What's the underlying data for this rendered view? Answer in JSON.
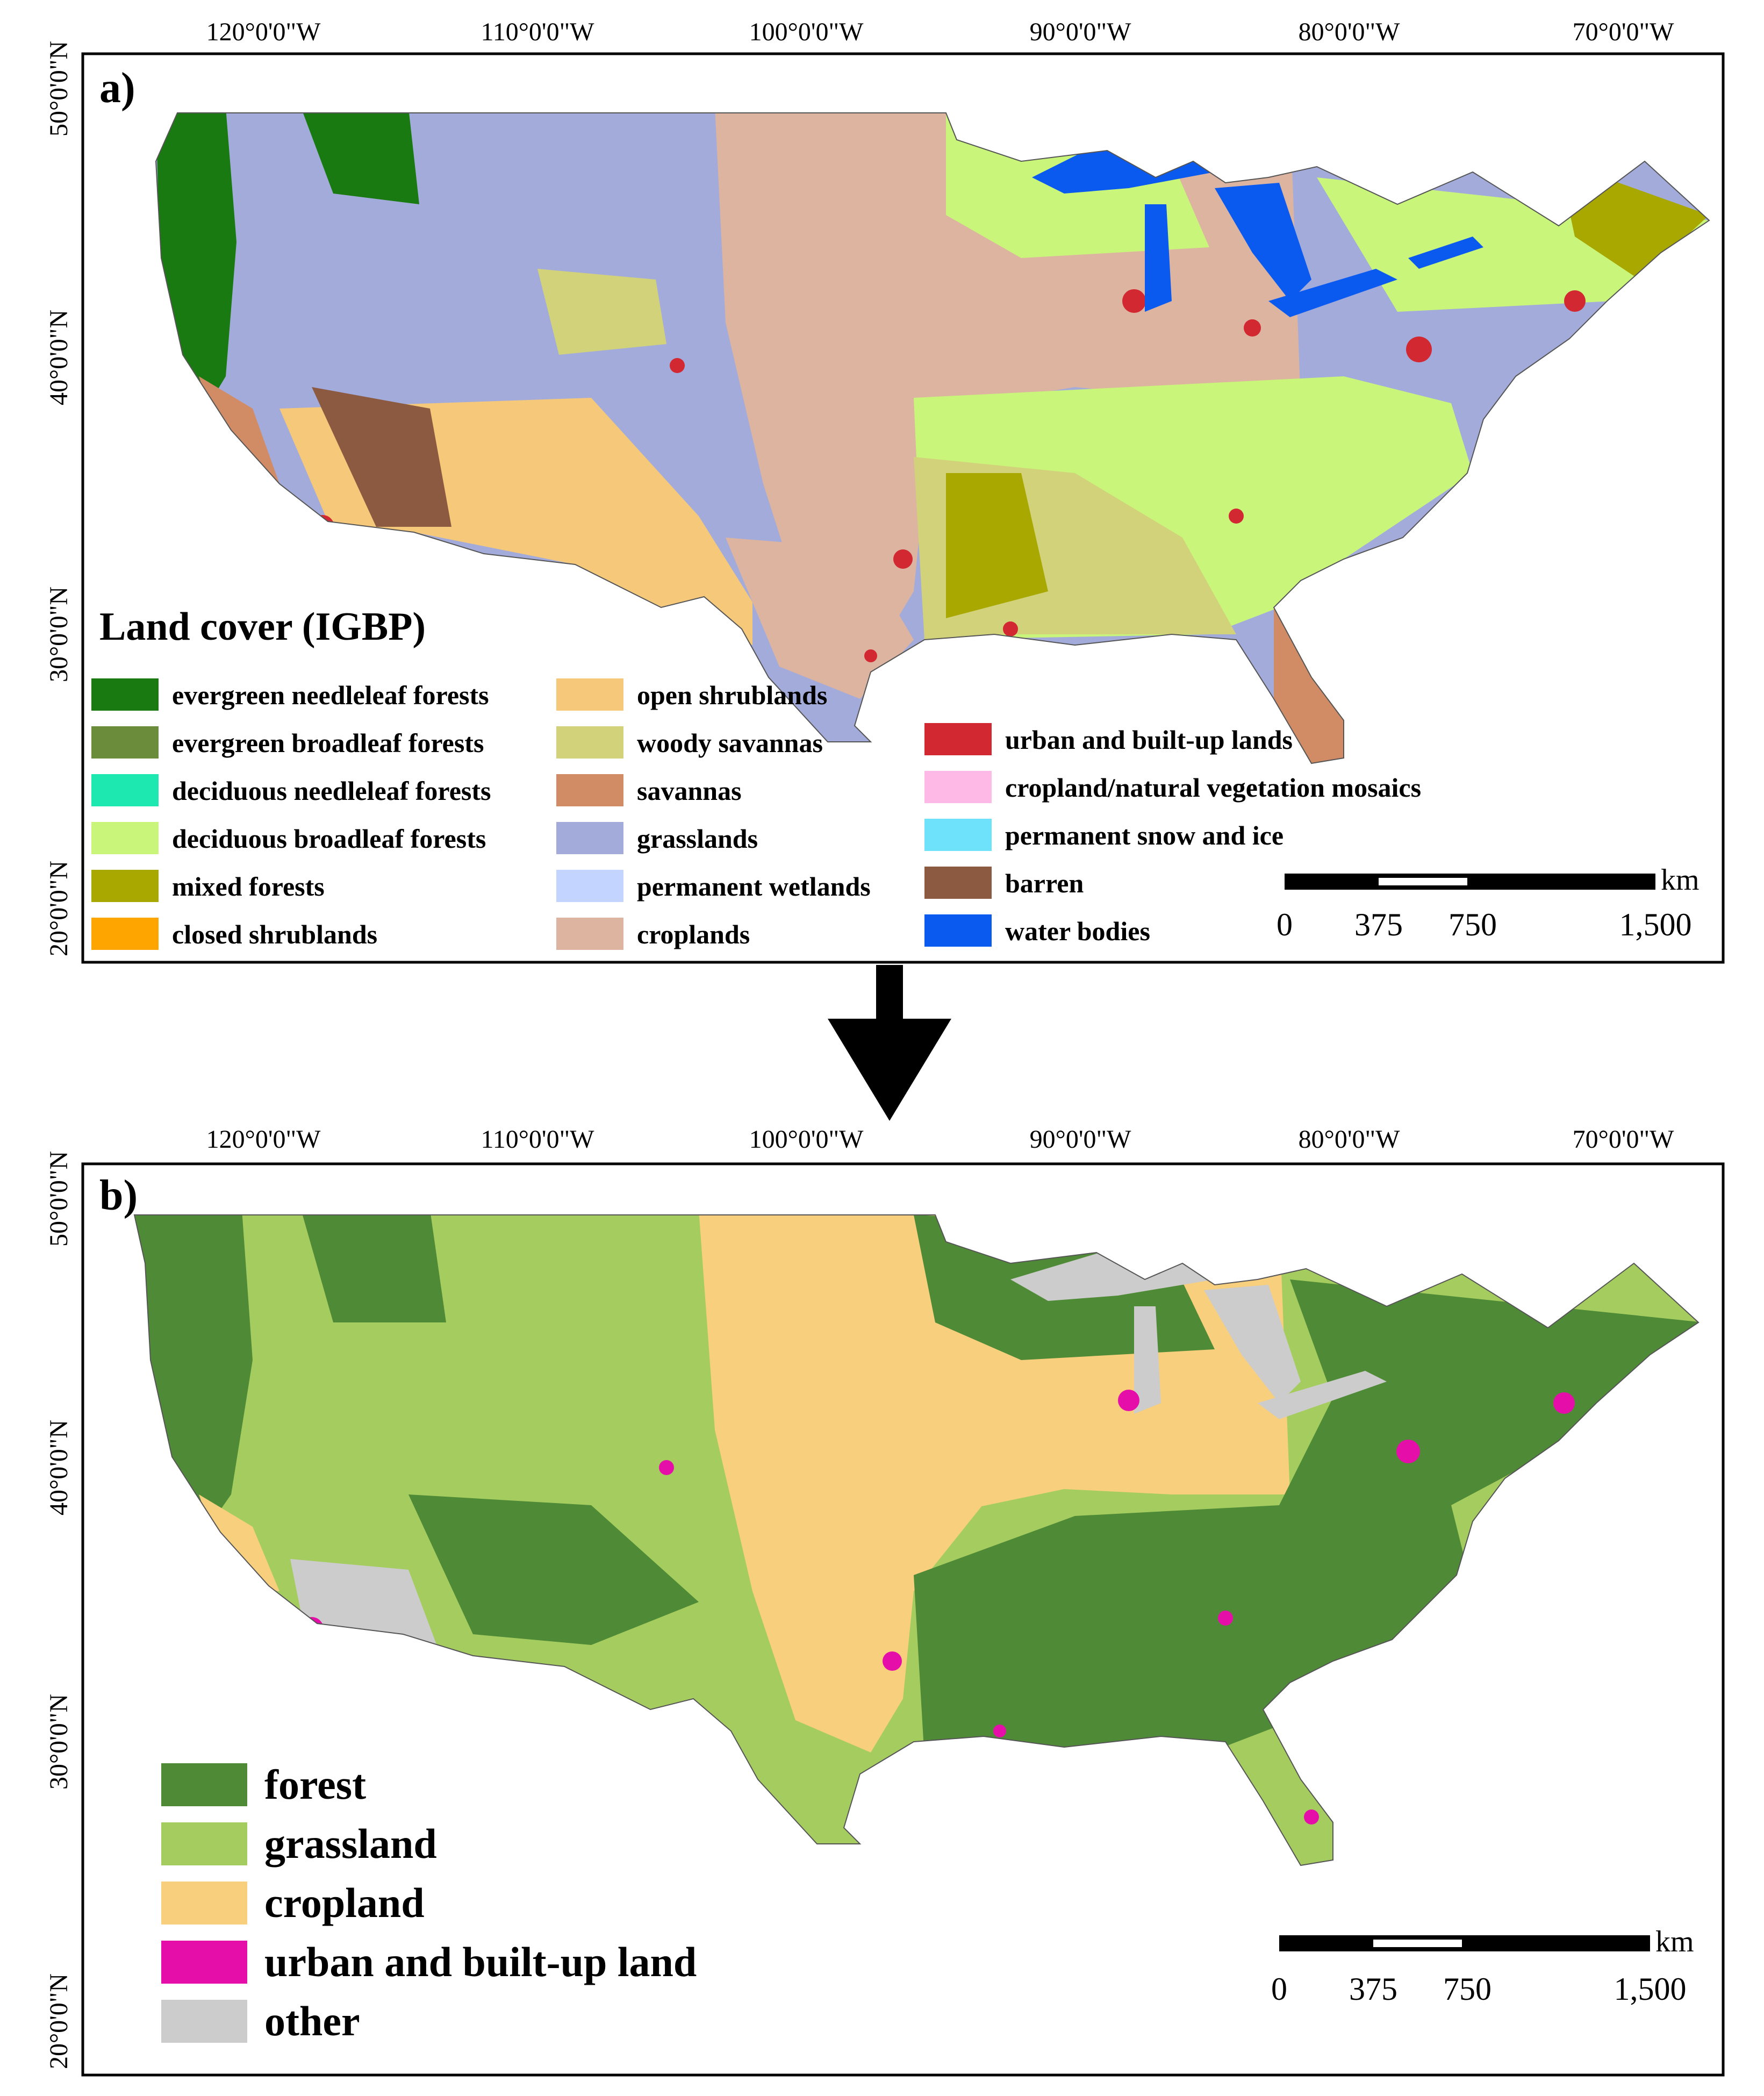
{
  "panel_a": {
    "label": "a)",
    "lon_ticks": [
      "120°0'0\"W",
      "110°0'0\"W",
      "100°0'0\"W",
      "90°0'0\"W",
      "80°0'0\"W",
      "70°0'0\"W"
    ],
    "lat_ticks": [
      "50°0'0\"N",
      "40°0'0\"N",
      "30°0'0\"N",
      "20°0'0\"N"
    ],
    "legend_title": "Land cover (IGBP)",
    "legend": [
      {
        "label": "evergreen needleleaf forests",
        "color": "#1a7a12"
      },
      {
        "label": "evergreen broadleaf forests",
        "color": "#6b8c3a"
      },
      {
        "label": "deciduous needleleaf forests",
        "color": "#1de8b0"
      },
      {
        "label": "deciduous broadleaf forests",
        "color": "#c8f57a"
      },
      {
        "label": "mixed forests",
        "color": "#a8a800"
      },
      {
        "label": "closed shrublands",
        "color": "#ffa500"
      },
      {
        "label": "open shrublands",
        "color": "#f5c87a"
      },
      {
        "label": "woody savannas",
        "color": "#d2d27a"
      },
      {
        "label": "savannas",
        "color": "#d18c66"
      },
      {
        "label": "grasslands",
        "color": "#a3abdb"
      },
      {
        "label": "permanent wetlands",
        "color": "#c3d5ff"
      },
      {
        "label": "croplands",
        "color": "#dcb4a0"
      },
      {
        "label": "urban and built-up lands",
        "color": "#d22832"
      },
      {
        "label": "cropland/natural vegetation mosaics",
        "color": "#ffb9e6"
      },
      {
        "label": "permanent snow and ice",
        "color": "#6ee2fa"
      },
      {
        "label": "barren",
        "color": "#8c5a41"
      },
      {
        "label": "water bodies",
        "color": "#0a5af0"
      }
    ],
    "scale_unit": "km",
    "scale_labels": [
      "0",
      "375",
      "750",
      "1,500"
    ]
  },
  "panel_b": {
    "label": "b)",
    "lon_ticks": [
      "120°0'0\"W",
      "110°0'0\"W",
      "100°0'0\"W",
      "90°0'0\"W",
      "80°0'0\"W",
      "70°0'0\"W"
    ],
    "lat_ticks": [
      "50°0'0\"N",
      "40°0'0\"N",
      "30°0'0\"N",
      "20°0'0\"N"
    ],
    "legend": [
      {
        "label": "forest",
        "color": "#4f8a37"
      },
      {
        "label": "grassland",
        "color": "#a5cc5f"
      },
      {
        "label": "cropland",
        "color": "#f8cf7d"
      },
      {
        "label": "urban and built-up land",
        "color": "#e60ea8"
      },
      {
        "label": "other",
        "color": "#cccccc"
      }
    ],
    "scale_unit": "km",
    "scale_labels": [
      "0",
      "375",
      "750",
      "1,500"
    ]
  }
}
